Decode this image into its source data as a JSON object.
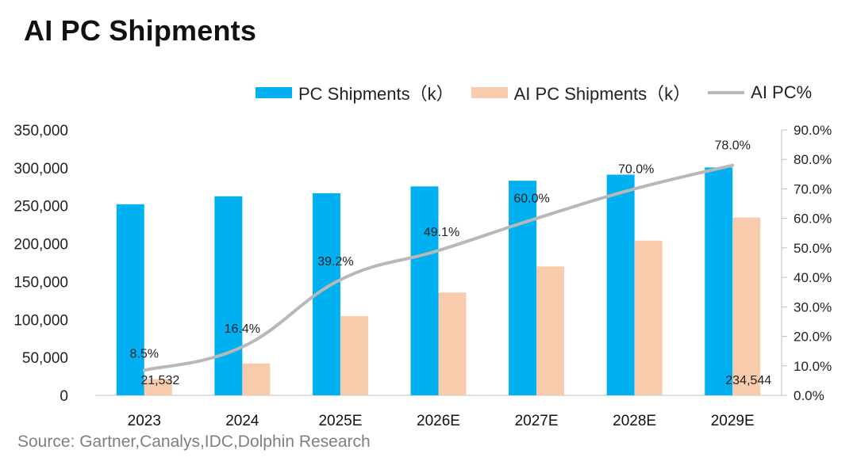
{
  "page_title": "AI PC Shipments",
  "source_note": "Source: Gartner,Canalys,IDC,Dolphin Research",
  "chart_data": {
    "type": "bar",
    "title": "AI PC Shipments",
    "categories": [
      "2023",
      "2024",
      "2025E",
      "2026E",
      "2027E",
      "2028E",
      "2029E"
    ],
    "series": [
      {
        "name": "PC Shipments（k）",
        "kind": "bar",
        "axis": "left",
        "color": "#00b0f0",
        "values": [
          252000,
          262500,
          266500,
          275500,
          283000,
          291000,
          300500
        ]
      },
      {
        "name": "AI PC Shipments（k）",
        "kind": "bar",
        "axis": "left",
        "color": "#f8cbad",
        "values": [
          21532,
          42000,
          104500,
          135500,
          170000,
          204000,
          234544
        ]
      },
      {
        "name": "AI PC%",
        "kind": "line",
        "axis": "right",
        "color": "#b8b8b8",
        "values": [
          8.5,
          16.4,
          39.2,
          49.1,
          60.0,
          70.0,
          78.0
        ]
      }
    ],
    "left_axis": {
      "ylim": [
        0,
        350000
      ],
      "ticks": [
        "0",
        "50,000",
        "100,000",
        "150,000",
        "200,000",
        "250,000",
        "300,000",
        "350,000"
      ]
    },
    "right_axis": {
      "ylim": [
        0,
        90
      ],
      "ticks": [
        "0.0%",
        "10.0%",
        "20.0%",
        "30.0%",
        "40.0%",
        "50.0%",
        "60.0%",
        "70.0%",
        "80.0%",
        "90.0%"
      ]
    },
    "data_labels": {
      "line": [
        "8.5%",
        "16.4%",
        "39.2%",
        "49.1%",
        "60.0%",
        "70.0%",
        "78.0%"
      ],
      "ai_bar_first": "21,532",
      "ai_bar_last": "234,544"
    },
    "legend_position": "top",
    "grid": false
  }
}
